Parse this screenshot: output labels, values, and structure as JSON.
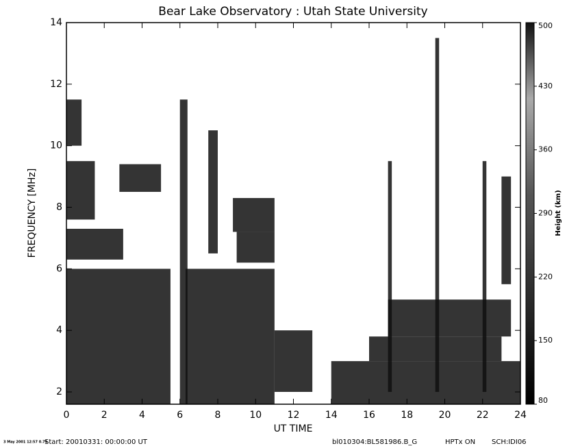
{
  "chart_data": {
    "type": "heatmap",
    "title": "Bear Lake Observatory : Utah State University",
    "xlabel": "UT TIME",
    "ylabel": "FREQUENCY [MHz]",
    "xlim": [
      0,
      24
    ],
    "xticks": [
      0,
      2,
      4,
      6,
      8,
      10,
      12,
      14,
      16,
      18,
      20,
      22,
      24
    ],
    "ylim": [
      1.6,
      14
    ],
    "yticks": [
      2,
      4,
      6,
      8,
      10,
      12,
      14
    ],
    "color": "#111111",
    "patches": [
      [
        0,
        5.5,
        1.6,
        6
      ],
      [
        6.3,
        11,
        1.6,
        6
      ],
      [
        6,
        6.4,
        1.6,
        11.5
      ],
      [
        7.5,
        8,
        6.5,
        10.5
      ],
      [
        8.8,
        11,
        7.2,
        8.3
      ],
      [
        9,
        11,
        6.2,
        7.2
      ],
      [
        2.8,
        5,
        8.5,
        9.4
      ],
      [
        0,
        3,
        6.3,
        7.3
      ],
      [
        0,
        1.5,
        7.6,
        9.5
      ],
      [
        0,
        0.8,
        10,
        11.5
      ],
      [
        14,
        24,
        1.6,
        3
      ],
      [
        16,
        23,
        3,
        3.8
      ],
      [
        17,
        23.5,
        3.8,
        5
      ],
      [
        11,
        13,
        2,
        4
      ],
      [
        17,
        17.2,
        2,
        9.5
      ],
      [
        19.5,
        19.7,
        2,
        13.5
      ],
      [
        22,
        22.2,
        2,
        9.5
      ],
      [
        23,
        23.5,
        5.5,
        9
      ]
    ],
    "colorbar": {
      "label": "Height (km)",
      "lim": [
        80,
        500
      ],
      "ticks": [
        80,
        150,
        220,
        290,
        360,
        430,
        500
      ]
    },
    "footer": {
      "date": "3 May 2001 12:57 0.74",
      "start": "Start: 20010331: 00:00:00 UT",
      "file": "bl010304:BL581986.B_G",
      "tx": "HPTx ON",
      "sch": "SCH:IDI06"
    }
  }
}
